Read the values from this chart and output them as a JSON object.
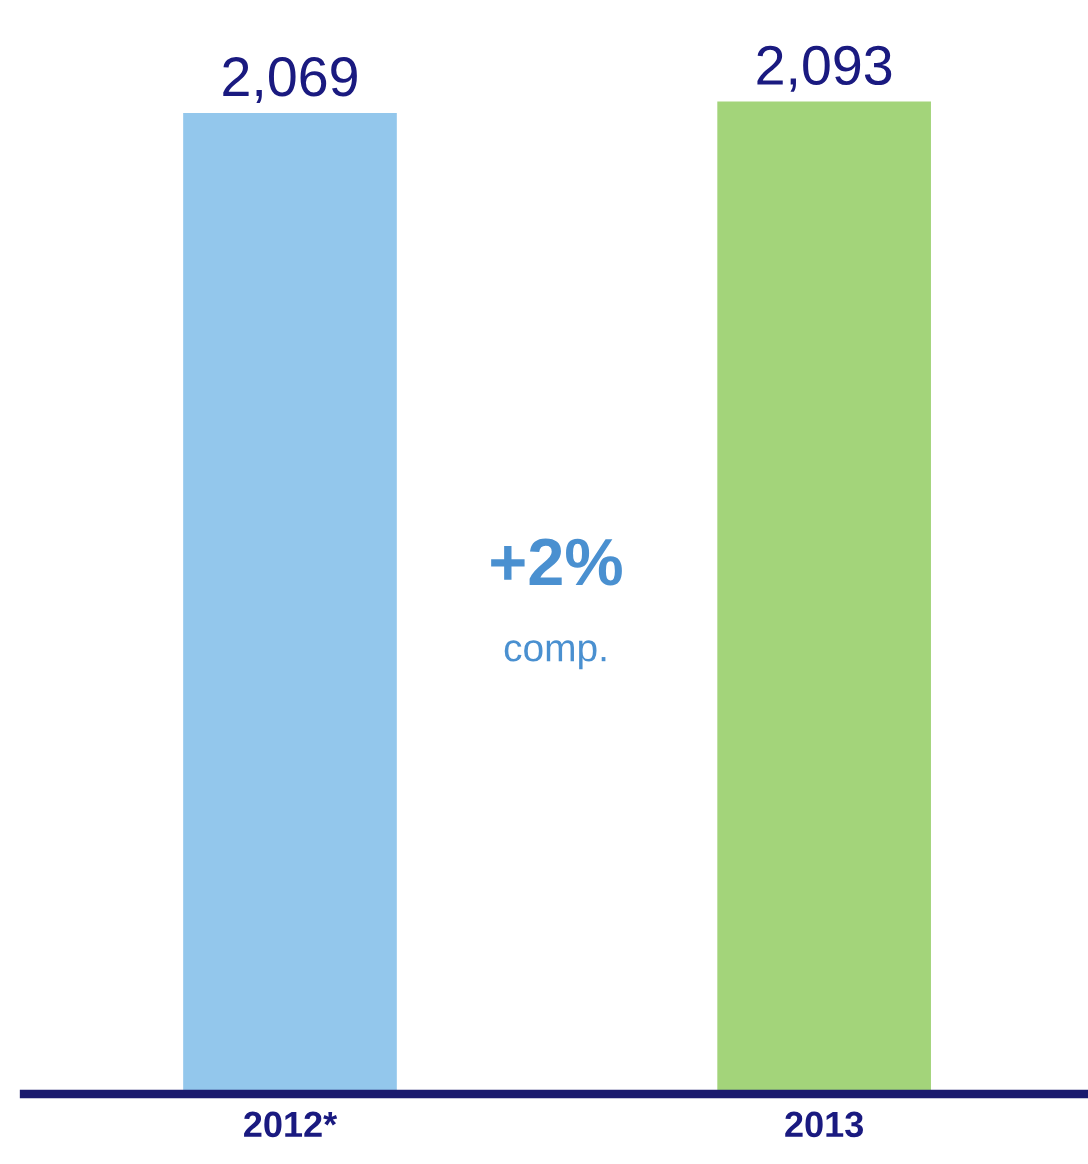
{
  "chart_data": {
    "type": "bar",
    "categories": [
      "2012*",
      "2013"
    ],
    "values": [
      2069,
      2093
    ],
    "colors": [
      "#93c7ec",
      "#a3d47a"
    ],
    "value_labels": [
      "2,069",
      "2,093"
    ],
    "annotations": [
      "+2%",
      "comp."
    ],
    "tick_labels": "x",
    "grid": false,
    "legend": false
  }
}
